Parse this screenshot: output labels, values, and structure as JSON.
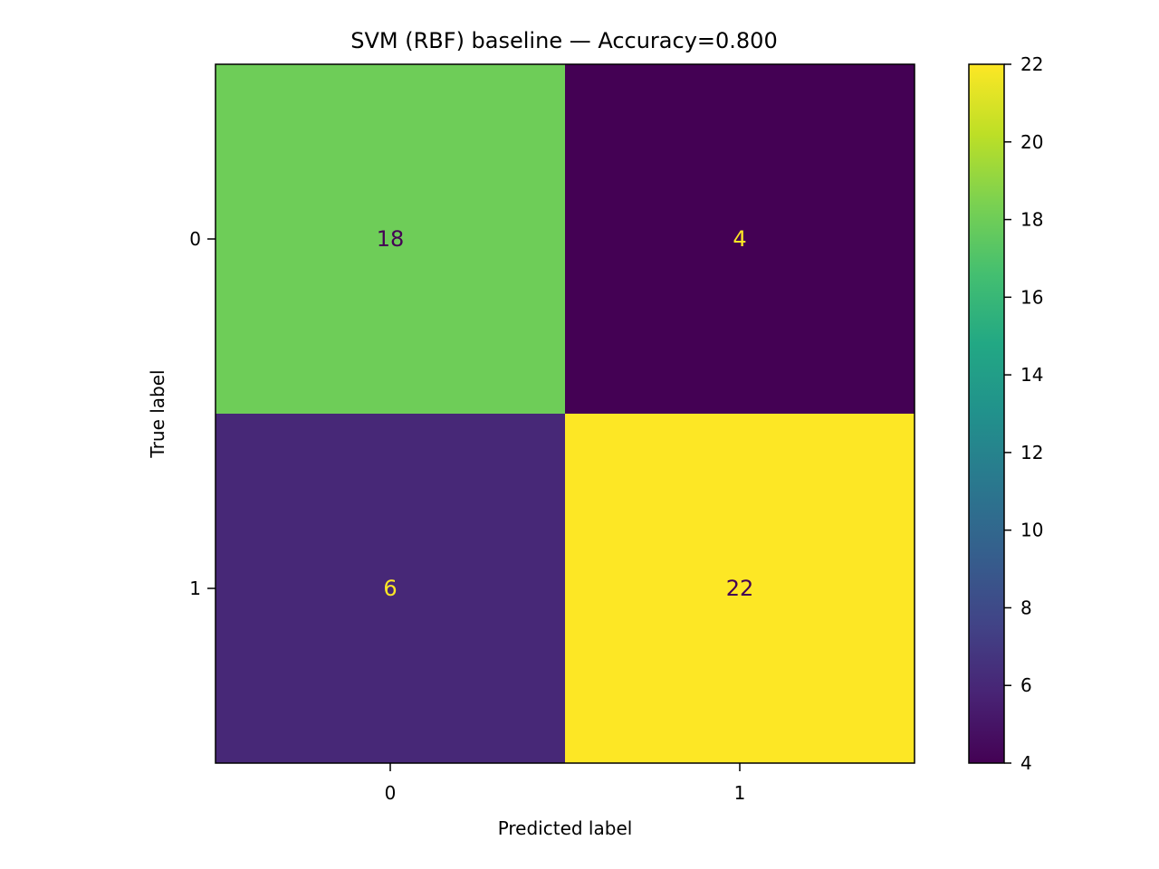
{
  "chart_data": {
    "type": "heatmap",
    "title": "SVM (RBF) baseline — Accuracy=0.800",
    "xlabel": "Predicted label",
    "ylabel": "True label",
    "x_categories": [
      "0",
      "1"
    ],
    "y_categories": [
      "0",
      "1"
    ],
    "matrix": [
      [
        18,
        4
      ],
      [
        6,
        22
      ]
    ],
    "colormap": "viridis",
    "colorbar": {
      "range": [
        4,
        22
      ],
      "ticks": [
        4,
        6,
        8,
        10,
        12,
        14,
        16,
        18,
        20,
        22
      ]
    },
    "grid": false
  }
}
